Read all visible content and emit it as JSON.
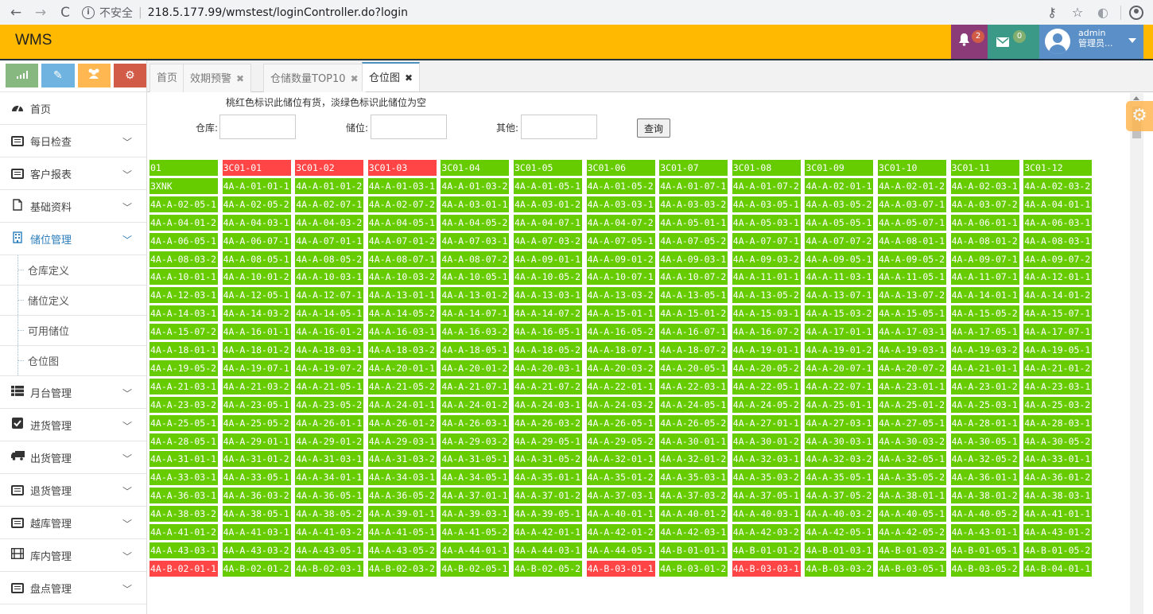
{
  "browser": {
    "insecure_label": "不安全",
    "url": "218.5.177.99/wmstest/loginController.do?login"
  },
  "header": {
    "logo": "WMS",
    "notifications_count": "2",
    "messages_count": "0",
    "user_name": "admin",
    "user_role": "管理员..."
  },
  "sidebar": {
    "shortcuts": [
      {
        "icon": "bar-chart-icon",
        "color": "#87b87f"
      },
      {
        "icon": "pencil-icon",
        "color": "#6fb3e0"
      },
      {
        "icon": "users-icon",
        "color": "#ffb752"
      },
      {
        "icon": "cogs-icon",
        "color": "#d15b47"
      }
    ],
    "home": "首页",
    "daily_check": "每日检查",
    "customer_reports": "客户报表",
    "basic_data": "基础资料",
    "location_mgmt": "储位管理",
    "sub_warehouse_def": "仓库定义",
    "sub_location_def": "储位定义",
    "sub_available": "可用储位",
    "sub_location_map": "仓位图",
    "dock_mgmt": "月台管理",
    "inbound_mgmt": "进货管理",
    "outbound_mgmt": "出货管理",
    "return_mgmt": "退货管理",
    "cross_dock_mgmt": "越库管理",
    "internal_mgmt": "库内管理",
    "stocktake_mgmt": "盘点管理"
  },
  "tabs": {
    "home": "首页",
    "expiry_warning": "效期预警",
    "top10": "仓储数量TOP10",
    "location_map": "仓位图"
  },
  "filter": {
    "note": "桃红色标识此储位有货，淡绿色标识此储位为空",
    "warehouse_label": "仓库:",
    "location_label": "储位:",
    "other_label": "其他:",
    "query_button": "查询"
  },
  "colors": {
    "occupied": "#ff4545",
    "empty": "#66cc00"
  },
  "locations": [
    [
      "01",
      "3C01-01",
      "3C01-02",
      "3C01-03",
      "3C01-04",
      "3C01-05",
      "3C01-06",
      "3C01-07",
      "3C01-08",
      "3C01-09",
      "3C01-10",
      "3C01-11",
      "3C01-12"
    ],
    [
      "3XNK",
      "4A-A-01-01-1",
      "4A-A-01-01-2",
      "4A-A-01-03-1",
      "4A-A-01-03-2",
      "4A-A-01-05-1",
      "4A-A-01-05-2",
      "4A-A-01-07-1",
      "4A-A-01-07-2",
      "4A-A-02-01-1",
      "4A-A-02-01-2",
      "4A-A-02-03-1",
      "4A-A-02-03-2"
    ],
    [
      "4A-A-02-05-1",
      "4A-A-02-05-2",
      "4A-A-02-07-1",
      "4A-A-02-07-2",
      "4A-A-03-01-1",
      "4A-A-03-01-2",
      "4A-A-03-03-1",
      "4A-A-03-03-2",
      "4A-A-03-05-1",
      "4A-A-03-05-2",
      "4A-A-03-07-1",
      "4A-A-03-07-2",
      "4A-A-04-01-1"
    ],
    [
      "4A-A-04-01-2",
      "4A-A-04-03-1",
      "4A-A-04-03-2",
      "4A-A-04-05-1",
      "4A-A-04-05-2",
      "4A-A-04-07-1",
      "4A-A-04-07-2",
      "4A-A-05-01-1",
      "4A-A-05-03-1",
      "4A-A-05-05-1",
      "4A-A-05-07-1",
      "4A-A-06-01-1",
      "4A-A-06-03-1"
    ],
    [
      "4A-A-06-05-1",
      "4A-A-06-07-1",
      "4A-A-07-01-1",
      "4A-A-07-01-2",
      "4A-A-07-03-1",
      "4A-A-07-03-2",
      "4A-A-07-05-1",
      "4A-A-07-05-2",
      "4A-A-07-07-1",
      "4A-A-07-07-2",
      "4A-A-08-01-1",
      "4A-A-08-01-2",
      "4A-A-08-03-1"
    ],
    [
      "4A-A-08-03-2",
      "4A-A-08-05-1",
      "4A-A-08-05-2",
      "4A-A-08-07-1",
      "4A-A-08-07-2",
      "4A-A-09-01-1",
      "4A-A-09-01-2",
      "4A-A-09-03-1",
      "4A-A-09-03-2",
      "4A-A-09-05-1",
      "4A-A-09-05-2",
      "4A-A-09-07-1",
      "4A-A-09-07-2"
    ],
    [
      "4A-A-10-01-1",
      "4A-A-10-01-2",
      "4A-A-10-03-1",
      "4A-A-10-03-2",
      "4A-A-10-05-1",
      "4A-A-10-05-2",
      "4A-A-10-07-1",
      "4A-A-10-07-2",
      "4A-A-11-01-1",
      "4A-A-11-03-1",
      "4A-A-11-05-1",
      "4A-A-11-07-1",
      "4A-A-12-01-1"
    ],
    [
      "4A-A-12-03-1",
      "4A-A-12-05-1",
      "4A-A-12-07-1",
      "4A-A-13-01-1",
      "4A-A-13-01-2",
      "4A-A-13-03-1",
      "4A-A-13-03-2",
      "4A-A-13-05-1",
      "4A-A-13-05-2",
      "4A-A-13-07-1",
      "4A-A-13-07-2",
      "4A-A-14-01-1",
      "4A-A-14-01-2"
    ],
    [
      "4A-A-14-03-1",
      "4A-A-14-03-2",
      "4A-A-14-05-1",
      "4A-A-14-05-2",
      "4A-A-14-07-1",
      "4A-A-14-07-2",
      "4A-A-15-01-1",
      "4A-A-15-01-2",
      "4A-A-15-03-1",
      "4A-A-15-03-2",
      "4A-A-15-05-1",
      "4A-A-15-05-2",
      "4A-A-15-07-1"
    ],
    [
      "4A-A-15-07-2",
      "4A-A-16-01-1",
      "4A-A-16-01-2",
      "4A-A-16-03-1",
      "4A-A-16-03-2",
      "4A-A-16-05-1",
      "4A-A-16-05-2",
      "4A-A-16-07-1",
      "4A-A-16-07-2",
      "4A-A-17-01-1",
      "4A-A-17-03-1",
      "4A-A-17-05-1",
      "4A-A-17-07-1"
    ],
    [
      "4A-A-18-01-1",
      "4A-A-18-01-2",
      "4A-A-18-03-1",
      "4A-A-18-03-2",
      "4A-A-18-05-1",
      "4A-A-18-05-2",
      "4A-A-18-07-1",
      "4A-A-18-07-2",
      "4A-A-19-01-1",
      "4A-A-19-01-2",
      "4A-A-19-03-1",
      "4A-A-19-03-2",
      "4A-A-19-05-1"
    ],
    [
      "4A-A-19-05-2",
      "4A-A-19-07-1",
      "4A-A-19-07-2",
      "4A-A-20-01-1",
      "4A-A-20-01-2",
      "4A-A-20-03-1",
      "4A-A-20-03-2",
      "4A-A-20-05-1",
      "4A-A-20-05-2",
      "4A-A-20-07-1",
      "4A-A-20-07-2",
      "4A-A-21-01-1",
      "4A-A-21-01-2"
    ],
    [
      "4A-A-21-03-1",
      "4A-A-21-03-2",
      "4A-A-21-05-1",
      "4A-A-21-05-2",
      "4A-A-21-07-1",
      "4A-A-21-07-2",
      "4A-A-22-01-1",
      "4A-A-22-03-1",
      "4A-A-22-05-1",
      "4A-A-22-07-1",
      "4A-A-23-01-1",
      "4A-A-23-01-2",
      "4A-A-23-03-1"
    ],
    [
      "4A-A-23-03-2",
      "4A-A-23-05-1",
      "4A-A-23-05-2",
      "4A-A-24-01-1",
      "4A-A-24-01-2",
      "4A-A-24-03-1",
      "4A-A-24-03-2",
      "4A-A-24-05-1",
      "4A-A-24-05-2",
      "4A-A-25-01-1",
      "4A-A-25-01-2",
      "4A-A-25-03-1",
      "4A-A-25-03-2"
    ],
    [
      "4A-A-25-05-1",
      "4A-A-25-05-2",
      "4A-A-26-01-1",
      "4A-A-26-01-2",
      "4A-A-26-03-1",
      "4A-A-26-03-2",
      "4A-A-26-05-1",
      "4A-A-26-05-2",
      "4A-A-27-01-1",
      "4A-A-27-03-1",
      "4A-A-27-05-1",
      "4A-A-28-01-1",
      "4A-A-28-03-1"
    ],
    [
      "4A-A-28-05-1",
      "4A-A-29-01-1",
      "4A-A-29-01-2",
      "4A-A-29-03-1",
      "4A-A-29-03-2",
      "4A-A-29-05-1",
      "4A-A-29-05-2",
      "4A-A-30-01-1",
      "4A-A-30-01-2",
      "4A-A-30-03-1",
      "4A-A-30-03-2",
      "4A-A-30-05-1",
      "4A-A-30-05-2"
    ],
    [
      "4A-A-31-01-1",
      "4A-A-31-01-2",
      "4A-A-31-03-1",
      "4A-A-31-03-2",
      "4A-A-31-05-1",
      "4A-A-31-05-2",
      "4A-A-32-01-1",
      "4A-A-32-01-2",
      "4A-A-32-03-1",
      "4A-A-32-03-2",
      "4A-A-32-05-1",
      "4A-A-32-05-2",
      "4A-A-33-01-1"
    ],
    [
      "4A-A-33-03-1",
      "4A-A-33-05-1",
      "4A-A-34-01-1",
      "4A-A-34-03-1",
      "4A-A-34-05-1",
      "4A-A-35-01-1",
      "4A-A-35-01-2",
      "4A-A-35-03-1",
      "4A-A-35-03-2",
      "4A-A-35-05-1",
      "4A-A-35-05-2",
      "4A-A-36-01-1",
      "4A-A-36-01-2"
    ],
    [
      "4A-A-36-03-1",
      "4A-A-36-03-2",
      "4A-A-36-05-1",
      "4A-A-36-05-2",
      "4A-A-37-01-1",
      "4A-A-37-01-2",
      "4A-A-37-03-1",
      "4A-A-37-03-2",
      "4A-A-37-05-1",
      "4A-A-37-05-2",
      "4A-A-38-01-1",
      "4A-A-38-01-2",
      "4A-A-38-03-1"
    ],
    [
      "4A-A-38-03-2",
      "4A-A-38-05-1",
      "4A-A-38-05-2",
      "4A-A-39-01-1",
      "4A-A-39-03-1",
      "4A-A-39-05-1",
      "4A-A-40-01-1",
      "4A-A-40-01-2",
      "4A-A-40-03-1",
      "4A-A-40-03-2",
      "4A-A-40-05-1",
      "4A-A-40-05-2",
      "4A-A-41-01-1"
    ],
    [
      "4A-A-41-01-2",
      "4A-A-41-03-1",
      "4A-A-41-03-2",
      "4A-A-41-05-1",
      "4A-A-41-05-2",
      "4A-A-42-01-1",
      "4A-A-42-01-2",
      "4A-A-42-03-1",
      "4A-A-42-03-2",
      "4A-A-42-05-1",
      "4A-A-42-05-2",
      "4A-A-43-01-1",
      "4A-A-43-01-2"
    ],
    [
      "4A-A-43-03-1",
      "4A-A-43-03-2",
      "4A-A-43-05-1",
      "4A-A-43-05-2",
      "4A-A-44-01-1",
      "4A-A-44-03-1",
      "4A-A-44-05-1",
      "4A-B-01-01-1",
      "4A-B-01-01-2",
      "4A-B-01-03-1",
      "4A-B-01-03-2",
      "4A-B-01-05-1",
      "4A-B-01-05-2"
    ],
    [
      "4A-B-02-01-1",
      "4A-B-02-01-2",
      "4A-B-02-03-1",
      "4A-B-02-03-2",
      "4A-B-02-05-1",
      "4A-B-02-05-2",
      "4A-B-03-01-1",
      "4A-B-03-01-2",
      "4A-B-03-03-1",
      "4A-B-03-03-2",
      "4A-B-03-05-1",
      "4A-B-03-05-2",
      "4A-B-04-01-1"
    ]
  ],
  "occupied": [
    "3C01-01",
    "3C01-02",
    "3C01-03",
    "4A-B-02-01-1",
    "4A-B-03-01-1",
    "4A-B-03-03-1"
  ]
}
